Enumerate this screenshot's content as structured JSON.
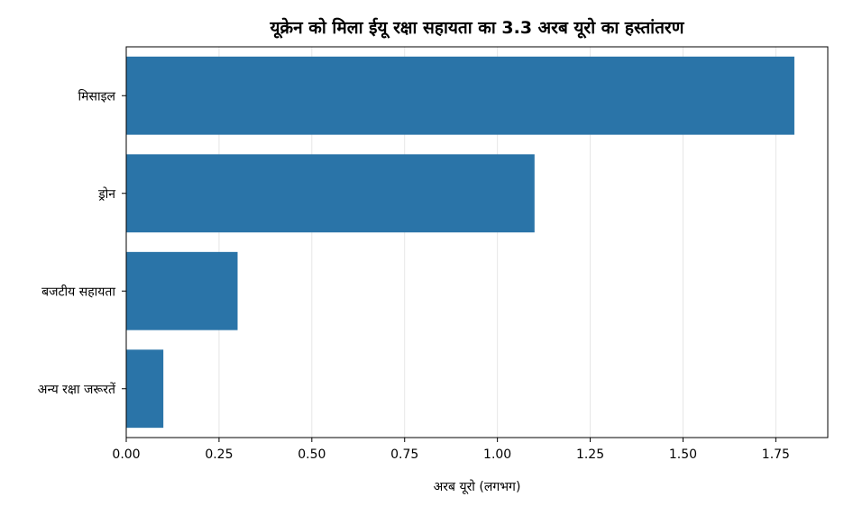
{
  "chart_data": {
    "type": "bar",
    "orientation": "horizontal",
    "title": "यूक्रेन को मिला ईयू रक्षा सहायता का 3.3 अरब यूरो का हस्तांतरण",
    "xlabel": "अरब यूरो (लगभग)",
    "ylabel": "",
    "categories": [
      "मिसाइल",
      "ड्रोन",
      "बजटीय सहायता",
      "अन्य रक्षा जरूरतें"
    ],
    "values": [
      1.8,
      1.1,
      0.3,
      0.1
    ],
    "xlim": [
      0,
      1.89
    ],
    "xticks": [
      0.0,
      0.25,
      0.5,
      0.75,
      1.0,
      1.25,
      1.5,
      1.75
    ],
    "xtick_labels": [
      "0.00",
      "0.25",
      "0.50",
      "0.75",
      "1.00",
      "1.25",
      "1.50",
      "1.75"
    ],
    "grid": "x",
    "bar_color": "#2a74a8",
    "grid_color": "#e6e6e6"
  }
}
